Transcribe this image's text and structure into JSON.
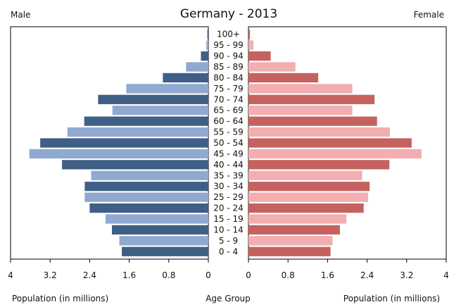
{
  "chart_data": {
    "type": "bar",
    "title": "Germany - 2013",
    "left_label": "Male",
    "right_label": "Female",
    "center_label": "Age Group",
    "xlabel_left": "Population (in millions)",
    "xlabel_right": "Population (in millions)",
    "xlim": [
      0,
      4
    ],
    "xticks": [
      4,
      3.2,
      2.4,
      1.6,
      0.8,
      0
    ],
    "xticks_right": [
      0,
      0.8,
      1.6,
      2.4,
      3.2,
      4
    ],
    "categories": [
      "100+",
      "95 - 99",
      "90 - 94",
      "85 - 89",
      "80 - 84",
      "75 - 79",
      "70 - 74",
      "65 - 69",
      "60 - 64",
      "55 - 59",
      "50 - 54",
      "45 - 49",
      "40 - 44",
      "35 - 39",
      "30 - 34",
      "25 - 29",
      "20 - 24",
      "15 - 19",
      "10 - 14",
      "5 - 9",
      "0 - 4"
    ],
    "series": [
      {
        "name": "Male",
        "values": [
          0.02,
          0.04,
          0.15,
          0.45,
          0.92,
          1.66,
          2.23,
          1.94,
          2.51,
          2.85,
          3.4,
          3.62,
          2.96,
          2.37,
          2.5,
          2.5,
          2.4,
          2.08,
          1.95,
          1.8,
          1.75
        ],
        "colors": [
          "#3f5f86",
          "#8fa9d1",
          "#3f5f86",
          "#8fa9d1",
          "#3f5f86",
          "#8fa9d1",
          "#3f5f86",
          "#8fa9d1",
          "#3f5f86",
          "#8fa9d1",
          "#3f5f86",
          "#8fa9d1",
          "#3f5f86",
          "#8fa9d1",
          "#3f5f86",
          "#8fa9d1",
          "#3f5f86",
          "#8fa9d1",
          "#3f5f86",
          "#8fa9d1",
          "#3f5f86"
        ]
      },
      {
        "name": "Female",
        "values": [
          0.03,
          0.1,
          0.45,
          0.95,
          1.41,
          2.1,
          2.55,
          2.1,
          2.6,
          2.86,
          3.3,
          3.5,
          2.85,
          2.3,
          2.45,
          2.42,
          2.33,
          1.98,
          1.85,
          1.7,
          1.66
        ],
        "colors": [
          "#c5625f",
          "#f2aeb0",
          "#c5625f",
          "#f2aeb0",
          "#c5625f",
          "#f2aeb0",
          "#c5625f",
          "#f2aeb0",
          "#c5625f",
          "#f2aeb0",
          "#c5625f",
          "#f2aeb0",
          "#c5625f",
          "#f2aeb0",
          "#c5625f",
          "#f2aeb0",
          "#c5625f",
          "#f2aeb0",
          "#c5625f",
          "#f2aeb0",
          "#c5625f"
        ]
      }
    ],
    "grid": false,
    "legend": "none"
  }
}
